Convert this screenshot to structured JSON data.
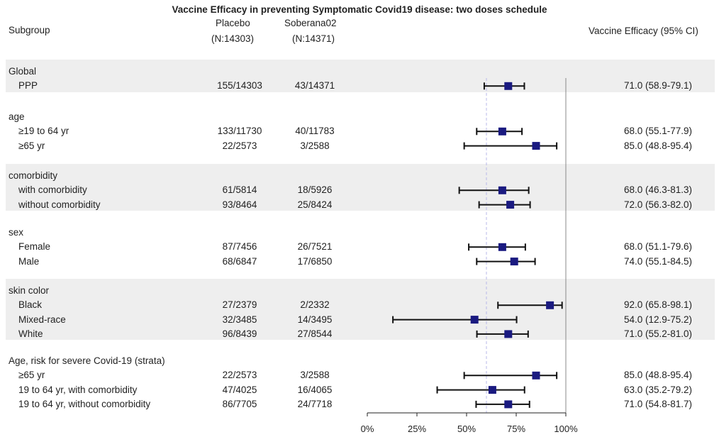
{
  "title": "Vaccine Efficacy in preventing Symptomatic Covid19 disease: two doses schedule",
  "headers": {
    "subgroup": "Subgroup",
    "placebo_line1": "Placebo",
    "placebo_line2": "(N:14303)",
    "vaccine_line1": "Soberana02",
    "vaccine_line2": "(N:14371)",
    "ve": "Vaccine Efficacy (95% CI)"
  },
  "chart_data": {
    "type": "forest",
    "xlabel": "",
    "xlim": [
      0,
      100
    ],
    "xticks": [
      "0%",
      "25%",
      "50%",
      "75%",
      "100%"
    ],
    "reference_line": 60,
    "groups": [
      {
        "label": "Global",
        "rows": [
          {
            "label": "PPP",
            "placebo": "155/14303",
            "vaccine": "43/14371",
            "ci_text": "71.0 (58.9-79.1)",
            "value": 71.0,
            "low": 58.9,
            "high": 79.1
          }
        ]
      },
      {
        "label": "age",
        "rows": [
          {
            "label": "≥19 to 64 yr",
            "placebo": "133/11730",
            "vaccine": "40/11783",
            "ci_text": "68.0 (55.1-77.9)",
            "value": 68.0,
            "low": 55.1,
            "high": 77.9
          },
          {
            "label": "≥65 yr",
            "placebo": "22/2573",
            "vaccine": "3/2588",
            "ci_text": "85.0 (48.8-95.4)",
            "value": 85.0,
            "low": 48.8,
            "high": 95.4
          }
        ]
      },
      {
        "label": "comorbidity",
        "rows": [
          {
            "label": "with comorbidity",
            "placebo": "61/5814",
            "vaccine": "18/5926",
            "ci_text": "68.0 (46.3-81.3)",
            "value": 68.0,
            "low": 46.3,
            "high": 81.3
          },
          {
            "label": "without comorbidity",
            "placebo": "93/8464",
            "vaccine": "25/8424",
            "ci_text": "72.0 (56.3-82.0)",
            "value": 72.0,
            "low": 56.3,
            "high": 82.0
          }
        ]
      },
      {
        "label": "sex",
        "rows": [
          {
            "label": "Female",
            "placebo": "87/7456",
            "vaccine": "26/7521",
            "ci_text": "68.0 (51.1-79.6)",
            "value": 68.0,
            "low": 51.1,
            "high": 79.6
          },
          {
            "label": "Male",
            "placebo": "68/6847",
            "vaccine": "17/6850",
            "ci_text": "74.0 (55.1-84.5)",
            "value": 74.0,
            "low": 55.1,
            "high": 84.5
          }
        ]
      },
      {
        "label": "skin color",
        "rows": [
          {
            "label": "Black",
            "placebo": "27/2379",
            "vaccine": "2/2332",
            "ci_text": "92.0 (65.8-98.1)",
            "value": 92.0,
            "low": 65.8,
            "high": 98.1
          },
          {
            "label": "Mixed-race",
            "placebo": "32/3485",
            "vaccine": "14/3495",
            "ci_text": "54.0 (12.9-75.2)",
            "value": 54.0,
            "low": 12.9,
            "high": 75.2
          },
          {
            "label": "White",
            "placebo": "96/8439",
            "vaccine": "27/8544",
            "ci_text": "71.0 (55.2-81.0)",
            "value": 71.0,
            "low": 55.2,
            "high": 81.0
          }
        ]
      },
      {
        "label": "Age, risk for severe Covid-19 (strata)",
        "rows": [
          {
            "label": "≥65 yr",
            "placebo": "22/2573",
            "vaccine": "3/2588",
            "ci_text": "85.0 (48.8-95.4)",
            "value": 85.0,
            "low": 48.8,
            "high": 95.4
          },
          {
            "label": "19 to 64 yr, with comorbidity",
            "placebo": "47/4025",
            "vaccine": "16/4065",
            "ci_text": "63.0 (35.2-79.2)",
            "value": 63.0,
            "low": 35.2,
            "high": 79.2
          },
          {
            "label": "19 to 64 yr, without comorbidity",
            "placebo": "86/7705",
            "vaccine": "24/7718",
            "ci_text": "71.0 (54.8-81.7)",
            "value": 71.0,
            "low": 54.8,
            "high": 81.7
          }
        ]
      }
    ],
    "colors": {
      "marker": "#1a1a80",
      "band": "#eeeeee",
      "line": "#222222",
      "reference": "#b8b8e8"
    }
  }
}
